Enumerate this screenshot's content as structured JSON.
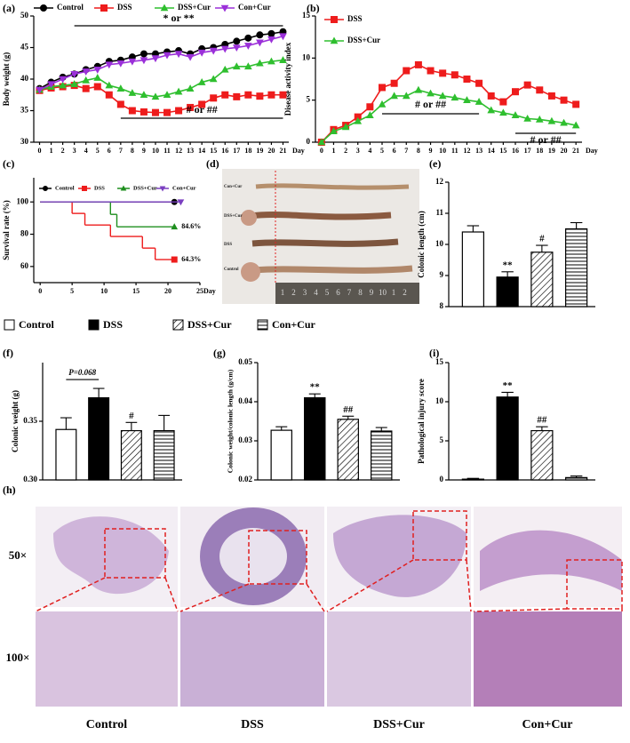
{
  "chart_data": [
    {
      "type": "line",
      "label": "(a)",
      "ylabel": "Body weight (g)",
      "xlabel": "Day",
      "legend": "top",
      "x": [
        0,
        1,
        2,
        3,
        4,
        5,
        6,
        7,
        8,
        9,
        10,
        11,
        12,
        13,
        14,
        15,
        16,
        17,
        18,
        19,
        20,
        21
      ],
      "xlim": [
        -0.5,
        21.5
      ],
      "xticks": [
        0,
        1,
        2,
        3,
        4,
        5,
        6,
        7,
        8,
        9,
        10,
        11,
        12,
        13,
        14,
        15,
        16,
        17,
        18,
        19,
        20,
        21
      ],
      "ylim": [
        30,
        50
      ],
      "yticks": [
        30,
        35,
        40,
        45,
        50
      ],
      "series": [
        {
          "name": "Control",
          "color": "#000000",
          "marker": "circle",
          "values": [
            38.5,
            39.5,
            40.3,
            40.8,
            41.5,
            42,
            42.8,
            43,
            43.5,
            44,
            44,
            44.3,
            44.5,
            44,
            44.8,
            45,
            45.5,
            46,
            46.5,
            47,
            47.2,
            47.5
          ]
        },
        {
          "name": "DSS",
          "color": "#ee1c1c",
          "marker": "square",
          "values": [
            38.2,
            38.6,
            38.8,
            39,
            38.5,
            38.8,
            37.5,
            36,
            35,
            34.8,
            34.7,
            34.7,
            35,
            35.5,
            36,
            37,
            37.5,
            37.2,
            37.5,
            37.3,
            37.5,
            37.5
          ]
        },
        {
          "name": "DSS+Cur",
          "color": "#2fbf2f",
          "marker": "triangle",
          "values": [
            38.3,
            38.8,
            39,
            39.2,
            39.8,
            40.2,
            39,
            38.5,
            37.8,
            37.5,
            37.2,
            37.5,
            38,
            38.5,
            39.5,
            40,
            41.5,
            42,
            42,
            42.5,
            42.8,
            43
          ]
        },
        {
          "name": "Con+Cur",
          "color": "#9b30d9",
          "marker": "tri-down",
          "values": [
            38.3,
            39.2,
            40,
            40.8,
            41.2,
            41.5,
            42.3,
            42.5,
            42.8,
            43,
            43.3,
            43.8,
            44,
            43.5,
            44.2,
            44.5,
            44.8,
            45,
            45.3,
            45.8,
            46.3,
            46.8
          ]
        }
      ],
      "annotations": [
        "* or **",
        "# or ##"
      ]
    },
    {
      "type": "line",
      "label": "(b)",
      "ylabel": "Disease activity index",
      "xlabel": "Day",
      "legend": "upper left",
      "x": [
        0,
        1,
        2,
        3,
        4,
        5,
        6,
        7,
        8,
        9,
        10,
        11,
        12,
        13,
        14,
        15,
        16,
        17,
        18,
        19,
        20,
        21
      ],
      "xlim": [
        -0.5,
        21.5
      ],
      "xticks": [
        0,
        1,
        2,
        3,
        4,
        5,
        6,
        7,
        8,
        9,
        10,
        11,
        12,
        13,
        14,
        15,
        16,
        17,
        18,
        19,
        20,
        21
      ],
      "ylim": [
        0,
        15
      ],
      "yticks": [
        0,
        5,
        10,
        15
      ],
      "series": [
        {
          "name": "DSS",
          "color": "#ee1c1c",
          "marker": "square",
          "values": [
            0,
            1.5,
            2,
            3,
            4.2,
            6.5,
            7,
            8.5,
            9.2,
            8.5,
            8.2,
            8,
            7.5,
            7,
            5.5,
            4.8,
            6,
            6.8,
            6.2,
            5.5,
            5,
            4.5
          ]
        },
        {
          "name": "DSS+Cur",
          "color": "#2fbf2f",
          "marker": "triangle",
          "values": [
            0,
            1.3,
            1.8,
            2.5,
            3.2,
            4.5,
            5.5,
            5.5,
            6.2,
            5.8,
            5.5,
            5.3,
            5,
            4.8,
            3.8,
            3.5,
            3.2,
            2.8,
            2.7,
            2.5,
            2.3,
            2
          ]
        }
      ],
      "annotations": [
        "# or ##",
        "# or ##"
      ]
    },
    {
      "type": "step",
      "label": "(c)",
      "ylabel": "Survival rate (%)",
      "xlabel": "Day",
      "legend": "top",
      "xlim": [
        -1,
        25
      ],
      "xticks": [
        0,
        5,
        10,
        15,
        20,
        25
      ],
      "ylim": [
        50,
        115
      ],
      "yticks": [
        60,
        80,
        100
      ],
      "series": [
        {
          "name": "Control",
          "color": "#000000",
          "marker": "circle",
          "x": [
            0,
            21
          ],
          "values": [
            100,
            100
          ]
        },
        {
          "name": "DSS",
          "color": "#ee1c1c",
          "marker": "square",
          "x": [
            0,
            5,
            7,
            11,
            16,
            18,
            21
          ],
          "values": [
            100,
            92.9,
            85.7,
            78.6,
            71.4,
            64.3,
            64.3
          ]
        },
        {
          "name": "DSS+Cur",
          "color": "#1f8f1f",
          "marker": "triangle",
          "x": [
            0,
            11,
            12,
            21
          ],
          "values": [
            100,
            92.3,
            84.6,
            84.6
          ]
        },
        {
          "name": "Con+Cur",
          "color": "#7a3fc0",
          "marker": "tri-down",
          "x": [
            0,
            22
          ],
          "values": [
            100,
            100
          ]
        }
      ],
      "annotations": [
        "84.6%",
        "64.3%"
      ]
    },
    {
      "type": "bar",
      "label": "(e)",
      "ylabel": "Colonic length (cm)",
      "ylim": [
        8,
        12
      ],
      "yticks": [
        8,
        9,
        10,
        11,
        12
      ],
      "values": [
        10.4,
        8.95,
        9.75,
        10.5
      ],
      "errors": [
        0.2,
        0.17,
        0.22,
        0.2
      ],
      "patterns": [
        "white",
        "black",
        "hatch",
        "hlines"
      ],
      "annotations": [
        "**",
        "#"
      ]
    },
    {
      "type": "bar",
      "label": "(f)",
      "ylabel": "Colonic weight (g)",
      "ylim": [
        0.3,
        0.4
      ],
      "yticks": [
        {
          "value": 0.3,
          "label": "0.30"
        },
        0.35
      ],
      "values": [
        0.343,
        0.37,
        0.342,
        0.342
      ],
      "errors": [
        0.01,
        0.008,
        0.007,
        0.013
      ],
      "patterns": [
        "white",
        "black",
        "hatch",
        "hlines"
      ],
      "annotations": [
        "P=0.068",
        "#"
      ]
    },
    {
      "type": "bar",
      "label": "(g)",
      "ylabel": "Colonic weight/colonic length (g/cm)",
      "ylim": [
        0.02,
        0.05
      ],
      "yticks": [
        0.02,
        0.03,
        0.04,
        0.05
      ],
      "values": [
        0.0327,
        0.041,
        0.0355,
        0.0325
      ],
      "errors": [
        0.0009,
        0.001,
        0.0008,
        0.0009
      ],
      "patterns": [
        "white",
        "black",
        "hatch",
        "hlines"
      ],
      "annotations": [
        "**",
        "##"
      ]
    },
    {
      "type": "bar",
      "label": "(i)",
      "ylabel": "Pathological injury score",
      "ylim": [
        0,
        15
      ],
      "yticks": [
        0,
        5,
        10,
        15
      ],
      "values": [
        0.1,
        10.6,
        6.3,
        0.3
      ],
      "errors": [
        0.1,
        0.6,
        0.5,
        0.2
      ],
      "patterns": [
        "white",
        "black",
        "hatch",
        "hlines"
      ],
      "annotations": [
        "**",
        "##"
      ]
    }
  ],
  "bar_legend": [
    "Control",
    "DSS",
    "DSS+Cur",
    "Con+Cur"
  ],
  "photo": {
    "label": "(d)",
    "groups": [
      "Con+Cur",
      "DSS+Cur",
      "DSS",
      "Control"
    ],
    "ruler": [
      "1",
      "2",
      "3",
      "4",
      "5",
      "6",
      "7",
      "8",
      "9",
      "10",
      "1",
      "2"
    ]
  },
  "histology": {
    "label": "(h)",
    "rows": [
      "50×",
      "100×"
    ],
    "columns": [
      "Control",
      "DSS",
      "DSS+Cur",
      "Con+Cur"
    ]
  }
}
